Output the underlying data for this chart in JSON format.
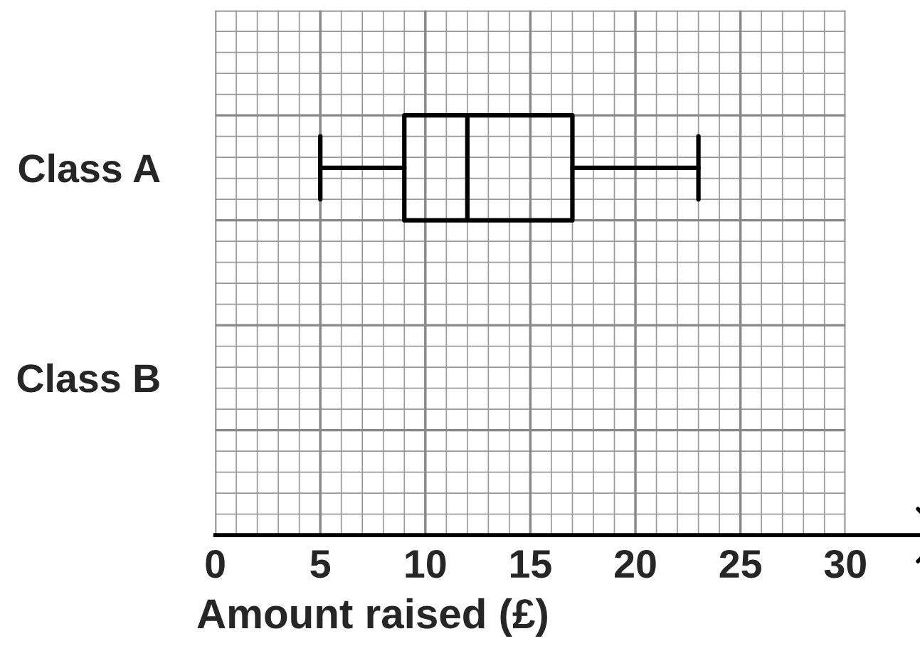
{
  "chart_data": {
    "type": "box",
    "xlabel": "Amount raised (£)",
    "categories": [
      "Class A",
      "Class B"
    ],
    "boxes": [
      {
        "low": 5,
        "q1": 9,
        "median": 12,
        "q3": 17,
        "high": 23
      },
      null
    ],
    "orientation": "horizontal",
    "xlim": [
      0,
      30
    ],
    "xticks": [
      0,
      5,
      10,
      15,
      20,
      25,
      30
    ],
    "grid": true
  }
}
